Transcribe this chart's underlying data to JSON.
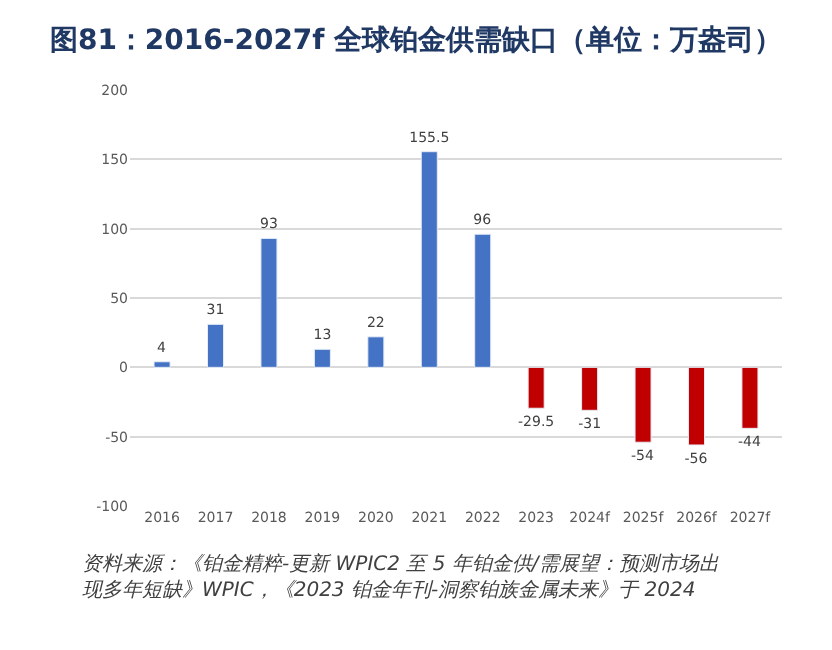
{
  "chart_data": {
    "type": "bar",
    "title": "图81：2016-2027f 全球铂金供需缺口（单位：万盎司）",
    "categories": [
      "2016",
      "2017",
      "2018",
      "2019",
      "2020",
      "2021",
      "2022",
      "2023",
      "2024f",
      "2025f",
      "2026f",
      "2027f"
    ],
    "values": [
      4,
      31,
      93,
      13,
      22,
      155.5,
      96,
      -29.5,
      -31,
      -54,
      -56,
      -44
    ],
    "colors": [
      "#4472c4",
      "#4472c4",
      "#4472c4",
      "#4472c4",
      "#4472c4",
      "#4472c4",
      "#4472c4",
      "#c00000",
      "#c00000",
      "#c00000",
      "#c00000",
      "#c00000"
    ],
    "ylim": [
      -100,
      200
    ],
    "yticks": [
      -100,
      -50,
      0,
      50,
      100,
      150,
      200
    ],
    "grid": "y",
    "data_labels": true,
    "annotations": [
      "资料来源：《铂金精粹-更新 WPIC2 至 5 年铂金供/需展望：预测市场出现多年短缺》WPIC，《2023 铂金年刊-洞察铂族金属未来》于 2024"
    ]
  }
}
